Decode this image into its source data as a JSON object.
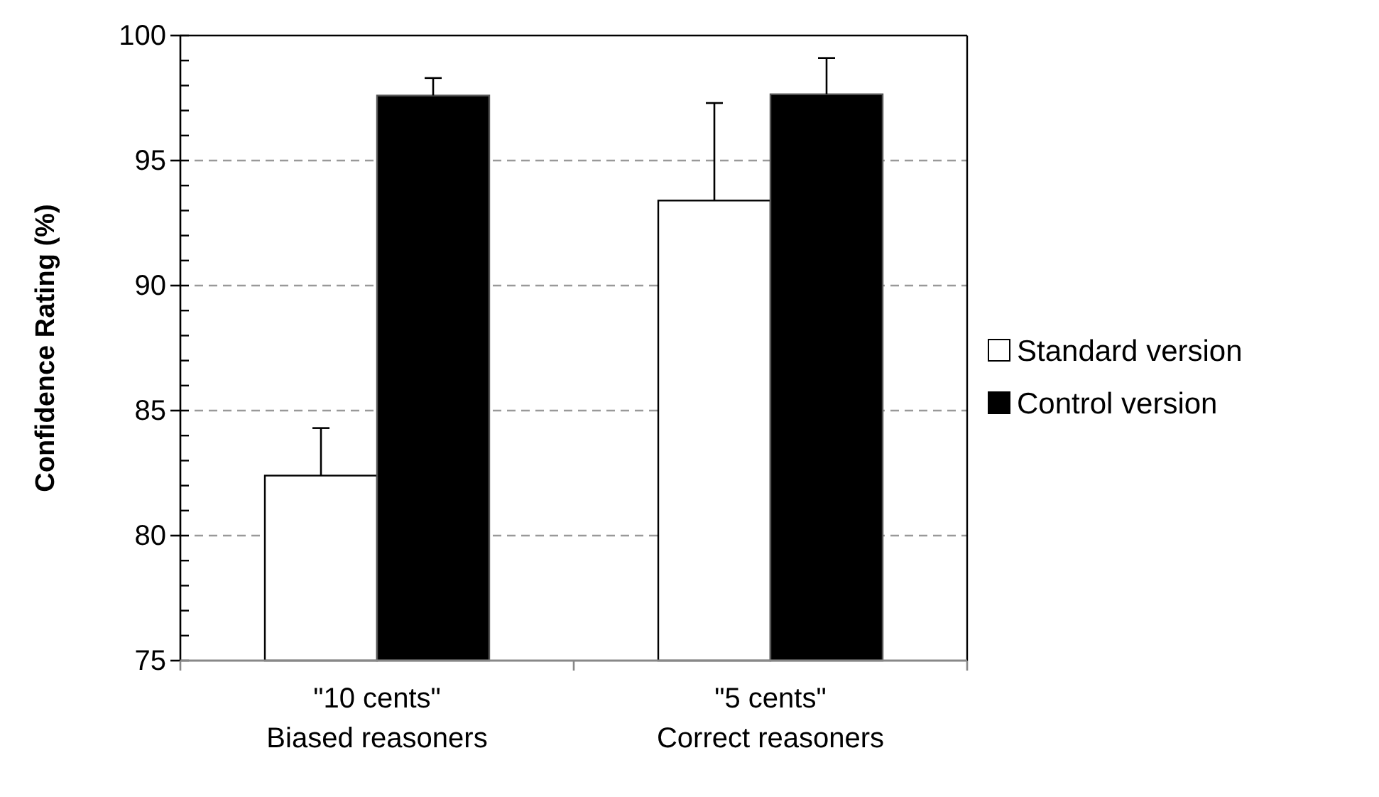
{
  "chart_data": {
    "type": "bar",
    "ylabel": "Confidence Rating (%)",
    "categories": [
      "\"10 cents\"\nBiased reasoners",
      "\"5 cents\"\nCorrect reasoners"
    ],
    "series": [
      {
        "name": "Standard version",
        "color": "#ffffff",
        "values": [
          82.4,
          93.4
        ],
        "errors": [
          1.9,
          3.9
        ]
      },
      {
        "name": "Control version",
        "color": "#000000",
        "values": [
          97.6,
          97.65
        ],
        "errors": [
          0.7,
          1.45
        ]
      }
    ],
    "ylim": [
      75,
      100
    ],
    "yticks": [
      75,
      80,
      85,
      90,
      95,
      100
    ],
    "grid": "y",
    "legend": "right"
  }
}
